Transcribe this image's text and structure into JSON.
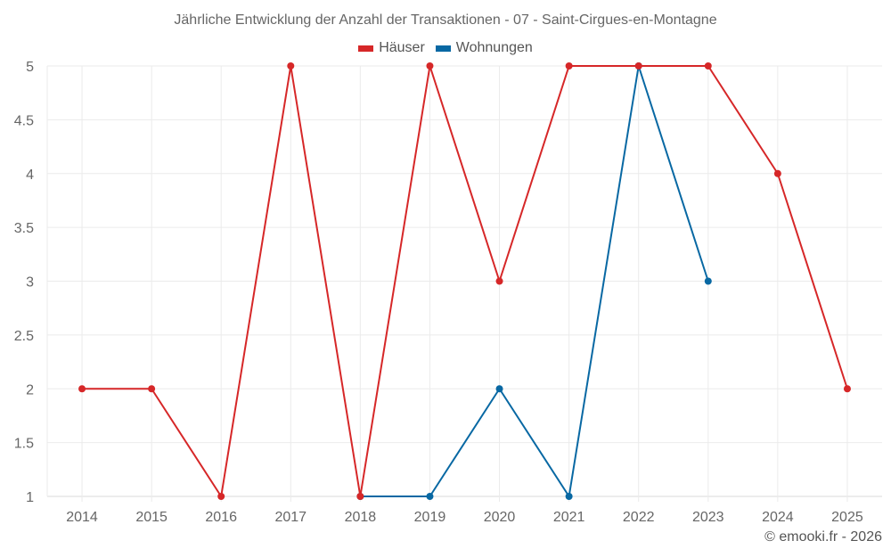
{
  "title": "Jährliche Entwicklung der Anzahl der Transaktionen - 07 - Saint-Cirgues-en-Montagne",
  "legend": [
    {
      "label": "Häuser",
      "color": "#d62728"
    },
    {
      "label": "Wohnungen",
      "color": "#0868a3"
    }
  ],
  "footer": "© emooki.fr - 2026",
  "chart_data": {
    "type": "line",
    "title": "Jährliche Entwicklung der Anzahl der Transaktionen - 07 - Saint-Cirgues-en-Montagne",
    "xlabel": "",
    "ylabel": "",
    "categories": [
      "2014",
      "2015",
      "2016",
      "2017",
      "2018",
      "2019",
      "2020",
      "2021",
      "2022",
      "2023",
      "2024",
      "2025"
    ],
    "series": [
      {
        "name": "Häuser",
        "color": "#d62728",
        "values": [
          2,
          2,
          1,
          5,
          1,
          5,
          3,
          5,
          5,
          5,
          4,
          2
        ]
      },
      {
        "name": "Wohnungen",
        "color": "#0868a3",
        "values": [
          null,
          null,
          null,
          null,
          1,
          1,
          2,
          1,
          5,
          3,
          null,
          null
        ]
      }
    ],
    "yticks": [
      1,
      1.5,
      2,
      2.5,
      3,
      3.5,
      4,
      4.5,
      5
    ],
    "ylim": [
      1,
      5
    ],
    "grid": true,
    "legend_position": "top"
  }
}
